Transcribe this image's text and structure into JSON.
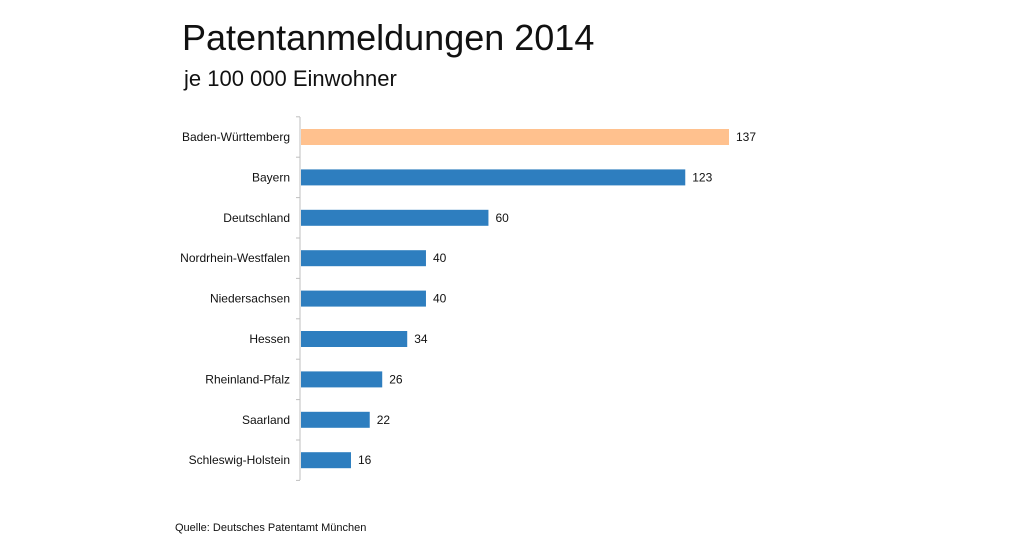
{
  "chart_data": {
    "type": "bar",
    "orientation": "horizontal",
    "title": "Patentanmeldungen 2014",
    "subtitle": "je 100 000 Einwohner",
    "source": "Quelle: Deutsches Patentamt München",
    "categories": [
      "Baden-Württemberg",
      "Bayern",
      "Deutschland",
      "Nordrhein-Westfalen",
      "Niedersachsen",
      "Hessen",
      "Rheinland-Pfalz",
      "Saarland",
      "Schleswig-Holstein"
    ],
    "values": [
      137,
      123,
      60,
      40,
      40,
      34,
      26,
      22,
      16
    ],
    "data_labels": [
      "137",
      "123",
      "60",
      "40",
      "40",
      "34",
      "26",
      "22",
      "16"
    ],
    "xlim": [
      0,
      137
    ],
    "grid": false,
    "legend": "none",
    "colors": {
      "highlight": "#FFC18E",
      "bar": "#2E7EBF",
      "axis": "#BFBFBF"
    },
    "highlight_index": 0
  }
}
